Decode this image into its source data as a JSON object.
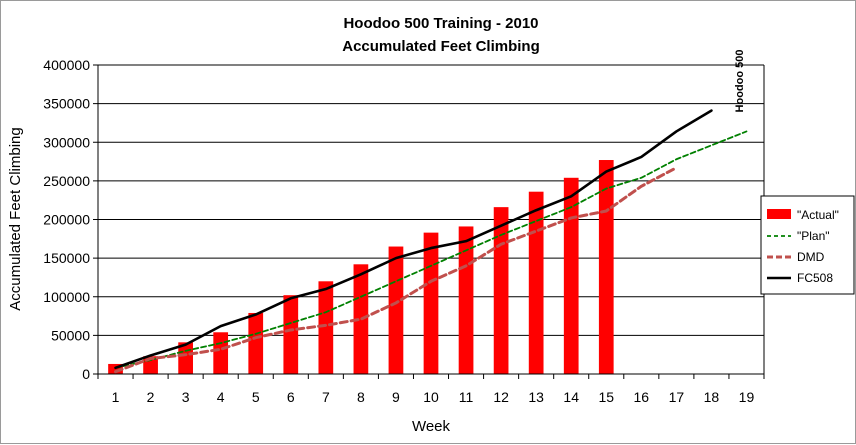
{
  "chart_data": {
    "type": "bar",
    "title": "Hoodoo 500 Training - 2010",
    "subtitle": "Accumulated Feet Climbing",
    "xlabel": "Week",
    "ylabel": "Accumulated Feet Climbing",
    "categories": [
      "1",
      "2",
      "3",
      "4",
      "5",
      "6",
      "7",
      "8",
      "9",
      "10",
      "11",
      "12",
      "13",
      "14",
      "15",
      "16",
      "17",
      "18",
      "19"
    ],
    "ylim": [
      0,
      400000
    ],
    "yticks": [
      0,
      50000,
      100000,
      150000,
      200000,
      250000,
      300000,
      350000,
      400000
    ],
    "grid": true,
    "legend_position": "right",
    "annotation": "Hoodoo 500",
    "series": [
      {
        "name": "\"Actual\"",
        "type": "bar",
        "color": "#ff0000",
        "values": [
          13000,
          23000,
          41000,
          54000,
          79000,
          102000,
          120000,
          142000,
          165000,
          183000,
          191000,
          216000,
          236000,
          254000,
          277000,
          null,
          null,
          null,
          null
        ]
      },
      {
        "name": "\"Plan\"",
        "type": "line",
        "dash": "dashed",
        "color": "#008000",
        "values": [
          8000,
          18000,
          30000,
          40000,
          52000,
          66000,
          80000,
          100000,
          120000,
          140000,
          160000,
          180000,
          198000,
          216000,
          240000,
          254000,
          278000,
          296000,
          314000
        ]
      },
      {
        "name": "DMD",
        "type": "line",
        "dash": "dashed",
        "color": "#c0504d",
        "values": [
          3000,
          20000,
          25000,
          32000,
          47000,
          57000,
          63000,
          71000,
          92000,
          120000,
          140000,
          168000,
          185000,
          202000,
          211000,
          243000,
          267000,
          null,
          null
        ]
      },
      {
        "name": "FC508",
        "type": "line",
        "dash": "solid",
        "color": "#000000",
        "values": [
          8000,
          24000,
          38000,
          62000,
          77000,
          98000,
          110000,
          129000,
          150000,
          163000,
          172000,
          192000,
          212000,
          230000,
          262000,
          281000,
          314000,
          341000,
          null
        ]
      }
    ]
  }
}
